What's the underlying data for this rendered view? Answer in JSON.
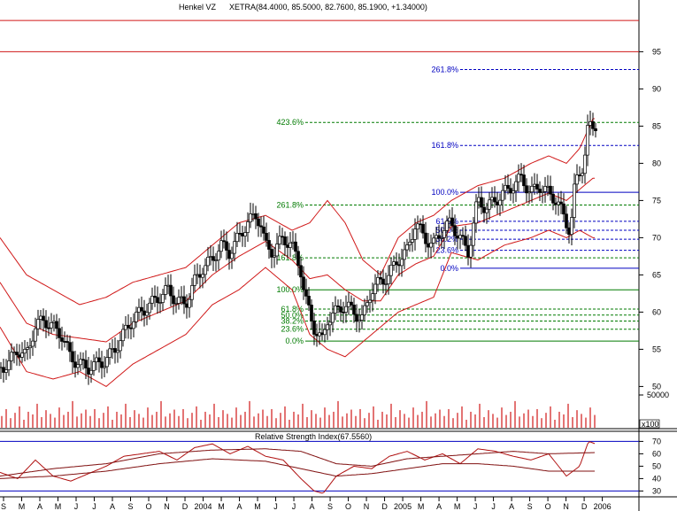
{
  "header": {
    "symbol": "Henkel VZ",
    "quote": "XETRA(84.4000, 85.5000, 82.7600, 85.1900, +1.34000)"
  },
  "colors": {
    "price_up": "#ffffff",
    "price_down": "#000000",
    "bollinger": "#d01818",
    "fib_green": "#007a00",
    "fib_blue": "#0000c0",
    "red_line": "#d01818",
    "rsi_line": "#b01010",
    "rsi_ma": "#801010"
  },
  "chart_data": [
    {
      "type": "line",
      "title": "Henkel VZ",
      "subtitle": "XETRA(84.4000, 85.5000, 82.7600, 85.1900, +1.34000)",
      "y_ticks": [
        95,
        90,
        85,
        80,
        75,
        70,
        65,
        60,
        55,
        50
      ],
      "ylim": [
        46,
        101
      ],
      "x_ticks": [
        "S",
        "M",
        "A",
        "M",
        "J",
        "J",
        "A",
        "S",
        "O",
        "N",
        "D",
        "2004",
        "M",
        "A",
        "M",
        "J",
        "J",
        "A",
        "S",
        "O",
        "N",
        "D",
        "2005",
        "M",
        "A",
        "M",
        "J",
        "J",
        "A",
        "S",
        "O",
        "N",
        "D",
        "2006"
      ],
      "price_anchors": [
        [
          0,
          52.5
        ],
        [
          10,
          53
        ],
        [
          20,
          55
        ],
        [
          30,
          54
        ],
        [
          40,
          58
        ],
        [
          50,
          59
        ],
        [
          60,
          58
        ],
        [
          70,
          57
        ],
        [
          80,
          54
        ],
        [
          90,
          53
        ],
        [
          100,
          52.5
        ],
        [
          110,
          53
        ],
        [
          120,
          53.5
        ],
        [
          130,
          55
        ],
        [
          140,
          57
        ],
        [
          150,
          59
        ],
        [
          160,
          60
        ],
        [
          170,
          61
        ],
        [
          180,
          62
        ],
        [
          190,
          63
        ],
        [
          200,
          61.5
        ],
        [
          210,
          61
        ],
        [
          220,
          64
        ],
        [
          230,
          66
        ],
        [
          240,
          67
        ],
        [
          250,
          69
        ],
        [
          260,
          68
        ],
        [
          270,
          70
        ],
        [
          280,
          72
        ],
        [
          290,
          73
        ],
        [
          295,
          72
        ],
        [
          300,
          69
        ],
        [
          310,
          68
        ],
        [
          320,
          70
        ],
        [
          330,
          69
        ],
        [
          340,
          66
        ],
        [
          345,
          62
        ],
        [
          355,
          58
        ],
        [
          365,
          56
        ],
        [
          370,
          59
        ],
        [
          380,
          60
        ],
        [
          390,
          61
        ],
        [
          400,
          60
        ],
        [
          410,
          59
        ],
        [
          420,
          63
        ],
        [
          430,
          64
        ],
        [
          440,
          65
        ],
        [
          450,
          67
        ],
        [
          460,
          68
        ],
        [
          470,
          72
        ],
        [
          480,
          70
        ],
        [
          490,
          69
        ],
        [
          500,
          71
        ],
        [
          510,
          72
        ],
        [
          520,
          70
        ],
        [
          530,
          68
        ],
        [
          540,
          75
        ],
        [
          550,
          74
        ],
        [
          560,
          75
        ],
        [
          570,
          76
        ],
        [
          580,
          77
        ],
        [
          590,
          78
        ],
        [
          600,
          76
        ],
        [
          610,
          77
        ],
        [
          620,
          76
        ],
        [
          630,
          75
        ],
        [
          640,
          72
        ],
        [
          645,
          71
        ],
        [
          650,
          77
        ],
        [
          660,
          80
        ],
        [
          665,
          85
        ],
        [
          670,
          84.5
        ],
        [
          673,
          85.19
        ]
      ],
      "bollinger_upper": [
        [
          0,
          70
        ],
        [
          30,
          65
        ],
        [
          60,
          63
        ],
        [
          90,
          61
        ],
        [
          120,
          62
        ],
        [
          150,
          64
        ],
        [
          180,
          65
        ],
        [
          210,
          66
        ],
        [
          240,
          69
        ],
        [
          270,
          72
        ],
        [
          300,
          73
        ],
        [
          330,
          71
        ],
        [
          350,
          72
        ],
        [
          370,
          75
        ],
        [
          390,
          72
        ],
        [
          410,
          67
        ],
        [
          430,
          65
        ],
        [
          450,
          70
        ],
        [
          470,
          72
        ],
        [
          490,
          73
        ],
        [
          510,
          75
        ],
        [
          540,
          77
        ],
        [
          570,
          78
        ],
        [
          600,
          80
        ],
        [
          620,
          81
        ],
        [
          640,
          80
        ],
        [
          655,
          82
        ],
        [
          670,
          86
        ]
      ],
      "bollinger_lower": [
        [
          0,
          58
        ],
        [
          30,
          52
        ],
        [
          60,
          51
        ],
        [
          90,
          52
        ],
        [
          120,
          50
        ],
        [
          150,
          53
        ],
        [
          180,
          55
        ],
        [
          210,
          57
        ],
        [
          240,
          61
        ],
        [
          270,
          63
        ],
        [
          300,
          66
        ],
        [
          330,
          63
        ],
        [
          350,
          57
        ],
        [
          370,
          55
        ],
        [
          390,
          54
        ],
        [
          410,
          56
        ],
        [
          430,
          58
        ],
        [
          450,
          60
        ],
        [
          470,
          61
        ],
        [
          490,
          62
        ],
        [
          510,
          68
        ],
        [
          540,
          67
        ],
        [
          570,
          69
        ],
        [
          600,
          70
        ],
        [
          620,
          71
        ],
        [
          640,
          70
        ],
        [
          655,
          71
        ],
        [
          670,
          70
        ]
      ],
      "red_lines": [
        99.2,
        95.0
      ],
      "fib_levels": [
        {
          "label": "423.6%",
          "y": 85.5,
          "color": "green"
        },
        {
          "label": "261.8%",
          "y": 74.4,
          "color": "green"
        },
        {
          "label": "161.8%",
          "y": 67.3,
          "color": "green"
        },
        {
          "label": "100.0%",
          "y": 63.0,
          "color": "green"
        },
        {
          "label": "61.8%",
          "y": 60.4,
          "color": "green"
        },
        {
          "label": "50.0%",
          "y": 59.6,
          "color": "green"
        },
        {
          "label": "38.2%",
          "y": 58.8,
          "color": "green"
        },
        {
          "label": "23.6%",
          "y": 57.7,
          "color": "green"
        },
        {
          "label": "0.0%",
          "y": 56.1,
          "color": "green"
        },
        {
          "label": "261.8%",
          "y": 92.6,
          "color": "blue"
        },
        {
          "label": "161.8%",
          "y": 82.4,
          "color": "blue"
        },
        {
          "label": "100.0%",
          "y": 76.1,
          "color": "blue"
        },
        {
          "label": "61.8%",
          "y": 72.2,
          "color": "blue"
        },
        {
          "label": "50.0%",
          "y": 71.0,
          "color": "blue"
        },
        {
          "label": "38.2%",
          "y": 69.8,
          "color": "blue"
        },
        {
          "label": "23.6%",
          "y": 68.3,
          "color": "blue"
        },
        {
          "label": "0.0%",
          "y": 65.9,
          "color": "blue"
        }
      ]
    },
    {
      "type": "bar",
      "title": "",
      "y_ticks": [
        "50000"
      ],
      "unit_label": "x100",
      "ylim": [
        0,
        100000
      ],
      "pattern": [
        22,
        35,
        18,
        28,
        40,
        15,
        30,
        25,
        45,
        20,
        33,
        26,
        19,
        38,
        24,
        30,
        50,
        21,
        27,
        34
      ]
    },
    {
      "type": "line",
      "title": "Relative Strength Index(67.5560)",
      "y_ticks": [
        70,
        60,
        50,
        40,
        30
      ],
      "ylim": [
        26,
        76
      ],
      "hlines": [
        70,
        30
      ],
      "rsi": [
        [
          0,
          45
        ],
        [
          20,
          40
        ],
        [
          40,
          55
        ],
        [
          60,
          42
        ],
        [
          80,
          38
        ],
        [
          100,
          44
        ],
        [
          120,
          50
        ],
        [
          140,
          58
        ],
        [
          160,
          60
        ],
        [
          180,
          62
        ],
        [
          200,
          55
        ],
        [
          220,
          65
        ],
        [
          240,
          68
        ],
        [
          260,
          60
        ],
        [
          280,
          66
        ],
        [
          300,
          58
        ],
        [
          320,
          55
        ],
        [
          340,
          40
        ],
        [
          355,
          30
        ],
        [
          365,
          28
        ],
        [
          380,
          42
        ],
        [
          400,
          50
        ],
        [
          420,
          48
        ],
        [
          440,
          58
        ],
        [
          460,
          62
        ],
        [
          480,
          55
        ],
        [
          500,
          60
        ],
        [
          520,
          52
        ],
        [
          540,
          64
        ],
        [
          560,
          62
        ],
        [
          580,
          58
        ],
        [
          600,
          55
        ],
        [
          620,
          60
        ],
        [
          640,
          42
        ],
        [
          655,
          50
        ],
        [
          665,
          70
        ],
        [
          673,
          68
        ]
      ],
      "rsi_ma_upper": [
        [
          0,
          42
        ],
        [
          60,
          48
        ],
        [
          120,
          52
        ],
        [
          180,
          60
        ],
        [
          240,
          63
        ],
        [
          300,
          64
        ],
        [
          340,
          62
        ],
        [
          380,
          52
        ],
        [
          420,
          50
        ],
        [
          460,
          56
        ],
        [
          500,
          58
        ],
        [
          540,
          60
        ],
        [
          580,
          62
        ],
        [
          620,
          60
        ],
        [
          673,
          61
        ]
      ],
      "rsi_ma_lower": [
        [
          0,
          40
        ],
        [
          60,
          42
        ],
        [
          120,
          46
        ],
        [
          180,
          52
        ],
        [
          240,
          56
        ],
        [
          300,
          54
        ],
        [
          340,
          48
        ],
        [
          380,
          42
        ],
        [
          420,
          44
        ],
        [
          460,
          48
        ],
        [
          500,
          52
        ],
        [
          540,
          52
        ],
        [
          580,
          50
        ],
        [
          620,
          46
        ],
        [
          673,
          46
        ]
      ]
    }
  ]
}
